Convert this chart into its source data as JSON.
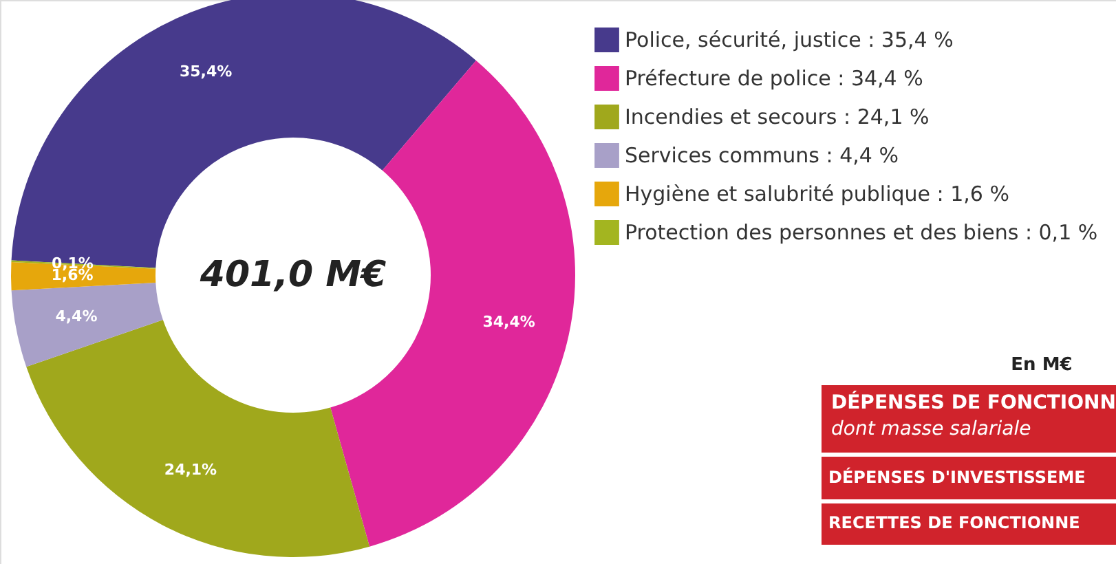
{
  "chart_data": {
    "type": "donut",
    "categories": [
      "Police, sécurité, justice",
      "Préfecture de police",
      "Incendies et secours",
      "Services communs",
      "Hygiène et salubrité publique",
      "Protection des personnes et des biens"
    ],
    "values": [
      35.4,
      34.4,
      24.1,
      4.4,
      1.6,
      0.1
    ],
    "colors": [
      "#473a8c",
      "#e0279a",
      "#a0a81c",
      "#a8a0c8",
      "#e6a70c",
      "#a3b520"
    ],
    "value_labels": [
      "35,4%",
      "34,4%",
      "24,1%",
      "4,4%",
      "1,6%",
      "0,1%"
    ],
    "legend": "right",
    "annotations": [
      "401,0 M€",
      "En M€",
      "DÉPENSES DE FONCTIONN",
      "dont masse salariale",
      "DÉPENSES D'INVESTISSEME",
      "RECETTES DE FONCTIONNE"
    ]
  }
}
